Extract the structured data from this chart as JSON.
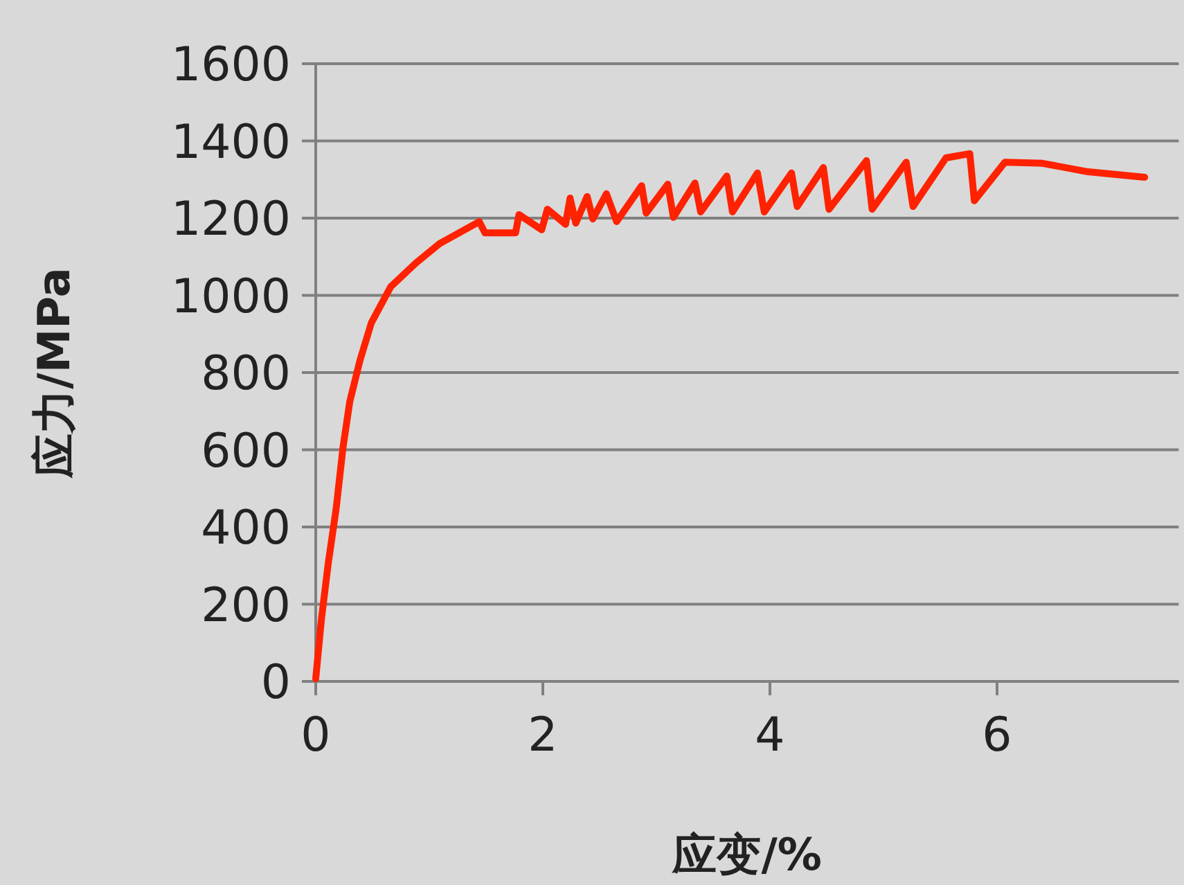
{
  "chart_data": {
    "type": "line",
    "xlabel": "应变/%",
    "ylabel": "应力/MPa",
    "xlim": [
      0,
      7.6
    ],
    "xticks": [
      0,
      2,
      4,
      6
    ],
    "ylim": [
      0,
      1600
    ],
    "yticks": [
      0,
      200,
      400,
      600,
      800,
      1000,
      1200,
      1400,
      1600
    ],
    "grid": "y",
    "marker": "none",
    "line_style": "solid",
    "series": [
      {
        "color": "#ff2200",
        "x": [
          0,
          0.05,
          0.11,
          0.18,
          0.24,
          0.3,
          0.39,
          0.49,
          0.66,
          0.88,
          1.09,
          1.44,
          1.49,
          1.76,
          1.79,
          1.99,
          2.04,
          2.2,
          2.24,
          2.29,
          2.39,
          2.44,
          2.56,
          2.65,
          2.87,
          2.91,
          3.1,
          3.15,
          3.34,
          3.39,
          3.62,
          3.67,
          3.89,
          3.95,
          4.19,
          4.24,
          4.47,
          4.52,
          4.85,
          4.9,
          5.2,
          5.26,
          5.55,
          5.76,
          5.8,
          6.07,
          6.4,
          6.8,
          7.3
        ],
        "values": [
          7,
          161,
          305,
          448,
          606,
          725,
          832,
          929,
          1022,
          1083,
          1134,
          1191,
          1162,
          1162,
          1209,
          1170,
          1223,
          1184,
          1252,
          1187,
          1256,
          1198,
          1263,
          1191,
          1284,
          1213,
          1288,
          1202,
          1291,
          1216,
          1309,
          1216,
          1317,
          1216,
          1317,
          1230,
          1331,
          1223,
          1349,
          1223,
          1345,
          1230,
          1356,
          1367,
          1245,
          1345,
          1342,
          1320,
          1306
        ]
      }
    ]
  }
}
